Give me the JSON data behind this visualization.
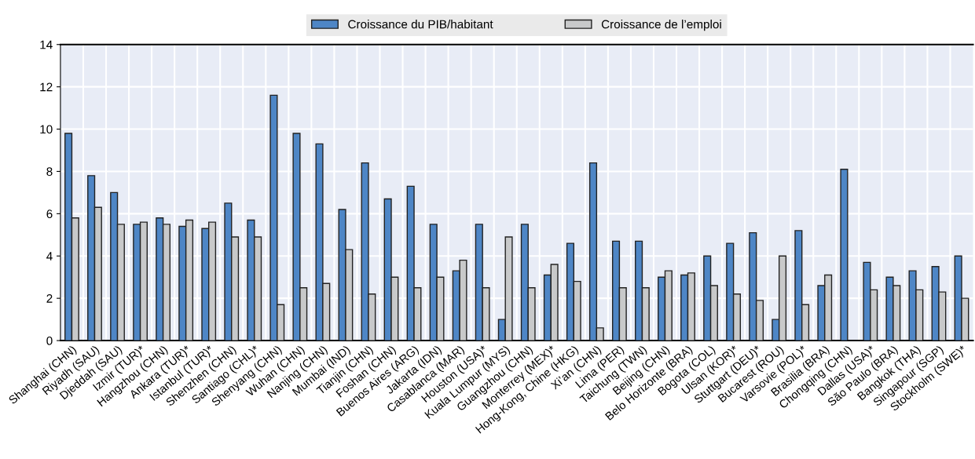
{
  "chart_data": {
    "type": "bar",
    "categories": [
      "Shanghai (CHN)",
      "Riyadh (SAU)",
      "Djeddah (SAU)",
      "Izmir (TUR)*",
      "Hangzhou (CHN)",
      "Ankara (TUR)*",
      "Istanbul (TUR)*",
      "Shenzhen (CHN)",
      "Santiago (CHL)*",
      "Shenyang (CHN)",
      "Wuhan (CHN)",
      "Nanjing (CHN)",
      "Mumbai (IND)",
      "Tianjin (CHN)",
      "Foshan (CHN)",
      "Buenos Aires (ARG)",
      "Jakarta (IDN)",
      "Casablanca (MAR)",
      "Houston (USA)*",
      "Kuala Lumpur (MYS)",
      "Guangzhou (CHN)",
      "Monterrey (MEX)*",
      "Hong-Kong, Chine (HKG)",
      "Xi’an (CHN)",
      "Lima (PER)",
      "Taichung (TWN)",
      "Beijing (CHN)",
      "Belo Horizonte (BRA)",
      "Bogota (COL)",
      "Ulsan (KOR)*",
      "Stuttgart (DEU)*",
      "Bucarest (ROU)",
      "Varsovie (POL)*",
      "Brasilia (BRA)",
      "Chongqing (CHN)",
      "Dallas (USA)*",
      "São Paulo (BRA)",
      "Bangkok (THA)",
      "Singapour (SGP)",
      "Stockholm (SWE)*"
    ],
    "series": [
      {
        "name": "Croissance du PIB/habitant",
        "color": "#4e86c6",
        "values": [
          9.8,
          7.8,
          7.0,
          5.5,
          5.8,
          5.4,
          5.3,
          6.5,
          5.7,
          11.6,
          9.8,
          9.3,
          6.2,
          8.4,
          6.7,
          7.3,
          5.5,
          3.3,
          5.5,
          1.0,
          5.5,
          3.1,
          4.6,
          8.4,
          4.7,
          4.7,
          3.0,
          3.1,
          4.0,
          4.6,
          5.1,
          1.0,
          5.2,
          2.6,
          8.1,
          3.7,
          3.0,
          3.3,
          3.5,
          4.0
        ]
      },
      {
        "name": "Croissance de l’emploi",
        "color": "#c8c9ca",
        "values": [
          5.8,
          6.3,
          5.5,
          5.6,
          5.5,
          5.7,
          5.6,
          4.9,
          4.9,
          1.7,
          2.5,
          2.7,
          4.3,
          2.2,
          3.0,
          2.5,
          3.0,
          3.8,
          2.5,
          4.9,
          2.5,
          3.6,
          2.8,
          0.6,
          2.5,
          2.5,
          3.3,
          3.2,
          2.6,
          2.2,
          1.9,
          4.0,
          1.7,
          3.1,
          null,
          2.4,
          2.6,
          2.4,
          2.3,
          2.0
        ]
      }
    ],
    "ylim": [
      0,
      14
    ],
    "yticks": [
      0,
      2,
      4,
      6,
      8,
      10,
      12,
      14
    ],
    "grid": true,
    "legend": "top"
  }
}
